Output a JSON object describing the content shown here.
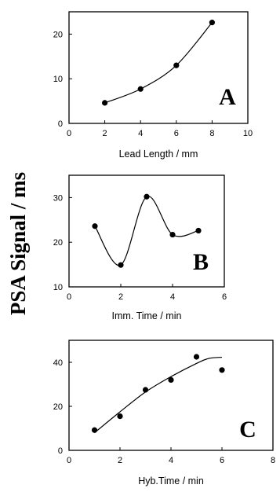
{
  "chart_data": {
    "ylabel": "PSA Signal / ms",
    "panels": [
      {
        "type": "line",
        "panel_label": "A",
        "xlabel": "Lead Length / mm",
        "xlim": [
          0,
          10
        ],
        "ylim": [
          0,
          25
        ],
        "xticks": [
          "0",
          "2",
          "4",
          "6",
          "8",
          "10"
        ],
        "yticks": [
          "0",
          "10",
          "20"
        ],
        "curve": "smooth through points",
        "series": [
          {
            "x": [
              2,
              4,
              6,
              8
            ],
            "y": [
              4.6,
              7.7,
              13.0,
              22.6
            ]
          }
        ]
      },
      {
        "type": "line",
        "panel_label": "B",
        "xlabel": "Imm. Time / min",
        "xlim": [
          0,
          6
        ],
        "ylim": [
          10,
          35
        ],
        "xticks": [
          "0",
          "2",
          "4",
          "6"
        ],
        "yticks": [
          "10",
          "20",
          "30"
        ],
        "curve": "smooth through points",
        "series": [
          {
            "x": [
              1,
              2,
              3,
              4,
              5
            ],
            "y": [
              23.6,
              14.9,
              30.2,
              21.7,
              22.6
            ]
          }
        ]
      },
      {
        "type": "scatter",
        "panel_label": "C",
        "xlabel": "Hyb.Time / min",
        "xlim": [
          0,
          8
        ],
        "ylim": [
          0,
          50
        ],
        "xticks": [
          "0",
          "2",
          "4",
          "6",
          "8"
        ],
        "yticks": [
          "0",
          "20",
          "40"
        ],
        "curve": "fitted trend line",
        "series": [
          {
            "x": [
              1,
              2,
              3,
              4,
              5,
              6
            ],
            "y": [
              9.2,
              15.5,
              27.5,
              32.0,
              42.5,
              36.5
            ]
          }
        ],
        "fit": {
          "x": [
            1,
            2,
            3,
            4,
            5,
            5.5,
            6
          ],
          "y": [
            8.0,
            17.5,
            26.5,
            33.5,
            39.5,
            41.8,
            42.3
          ]
        }
      }
    ]
  }
}
